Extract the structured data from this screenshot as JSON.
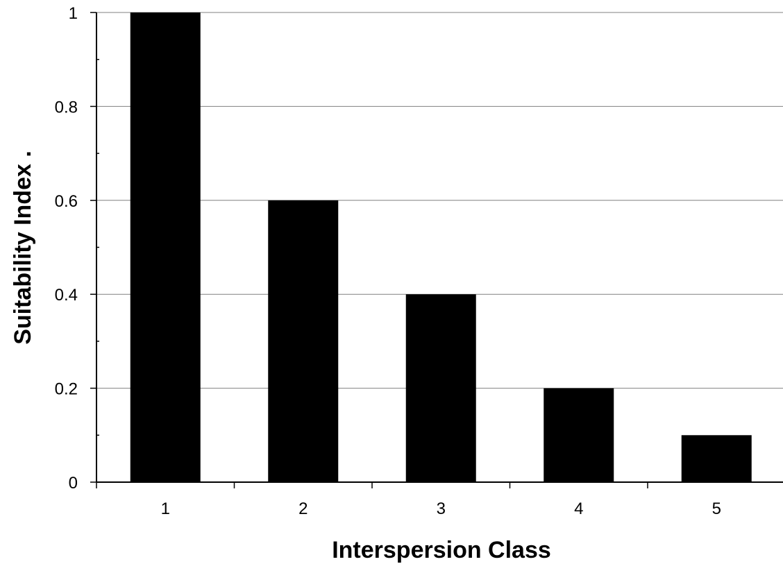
{
  "chart_data": {
    "type": "bar",
    "categories": [
      "1",
      "2",
      "3",
      "4",
      "5"
    ],
    "values": [
      1.0,
      0.6,
      0.4,
      0.2,
      0.1
    ],
    "title": "",
    "xlabel": "Interspersion Class",
    "ylabel": "Suitability Index  .",
    "ylim": [
      0,
      1
    ],
    "yticks": [
      "0",
      "0.2",
      "0.4",
      "0.6",
      "0.8",
      "1"
    ],
    "grid": "horizontal major gridlines",
    "legend": "none",
    "bar_color": "#000000",
    "grid_color": "#808080",
    "axis_color": "#000000"
  }
}
